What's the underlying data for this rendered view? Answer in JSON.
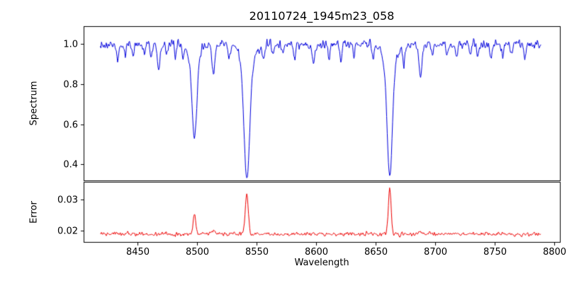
{
  "title": "20110724_1945m23_058",
  "axes": {
    "xlabel": "Wavelength",
    "xlim": [
      8405,
      8805
    ],
    "xticks": [
      {
        "value": 8450,
        "label": "8450"
      },
      {
        "value": 8500,
        "label": "8500"
      },
      {
        "value": 8550,
        "label": "8550"
      },
      {
        "value": 8600,
        "label": "8600"
      },
      {
        "value": 8650,
        "label": "8650"
      },
      {
        "value": 8700,
        "label": "8700"
      },
      {
        "value": 8750,
        "label": "8750"
      },
      {
        "value": 8800,
        "label": "8800"
      }
    ],
    "panels": {
      "top": {
        "ylabel": "Spectrum",
        "ylim": [
          0.32,
          1.09
        ],
        "yticks": [
          {
            "value": 0.4,
            "label": "0.4"
          },
          {
            "value": 0.6,
            "label": "0.6"
          },
          {
            "value": 0.8,
            "label": "0.8"
          },
          {
            "value": 1.0,
            "label": "1.0"
          }
        ]
      },
      "bottom": {
        "ylabel": "Error",
        "ylim": [
          0.0165,
          0.0355
        ],
        "yticks": [
          {
            "value": 0.02,
            "label": "0.02"
          },
          {
            "value": 0.03,
            "label": "0.03"
          }
        ]
      }
    }
  },
  "chart_data": {
    "type": "line",
    "title": "20110724_1945m23_058",
    "xlabel": "Wavelength",
    "x_start": 8419,
    "x_end": 8789,
    "x_step": 0.5,
    "noise_seed": 20110724,
    "series": [
      {
        "name": "spectrum",
        "panel": "top",
        "color": "#0000dd",
        "linewidth": 1,
        "baseline": 1.0,
        "noise_sigma": 0.012,
        "absorption_lines": [
          {
            "center": 8433.5,
            "depth": 0.09,
            "width": 0.9
          },
          {
            "center": 8440.0,
            "depth": 0.05,
            "width": 0.8
          },
          {
            "center": 8446.5,
            "depth": 0.07,
            "width": 0.8
          },
          {
            "center": 8456.0,
            "depth": 0.05,
            "width": 0.8
          },
          {
            "center": 8462.0,
            "depth": 0.06,
            "width": 0.8
          },
          {
            "center": 8468.0,
            "depth": 0.13,
            "width": 1.0
          },
          {
            "center": 8475.0,
            "depth": 0.06,
            "width": 0.8
          },
          {
            "center": 8482.0,
            "depth": 0.05,
            "width": 0.8
          },
          {
            "center": 8488.5,
            "depth": 0.06,
            "width": 0.8
          },
          {
            "center": 8498.0,
            "depth": 0.4,
            "width": 2.0
          },
          {
            "center": 8498.0,
            "depth": 0.07,
            "width": 5.0
          },
          {
            "center": 8514.0,
            "depth": 0.16,
            "width": 1.2
          },
          {
            "center": 8527.0,
            "depth": 0.07,
            "width": 0.9
          },
          {
            "center": 8542.1,
            "depth": 0.58,
            "width": 2.4
          },
          {
            "center": 8542.1,
            "depth": 0.09,
            "width": 6.0
          },
          {
            "center": 8556.0,
            "depth": 0.07,
            "width": 0.9
          },
          {
            "center": 8564.0,
            "depth": 0.05,
            "width": 0.8
          },
          {
            "center": 8572.0,
            "depth": 0.06,
            "width": 0.8
          },
          {
            "center": 8582.0,
            "depth": 0.07,
            "width": 0.9
          },
          {
            "center": 8598.0,
            "depth": 0.1,
            "width": 1.0
          },
          {
            "center": 8611.0,
            "depth": 0.08,
            "width": 0.9
          },
          {
            "center": 8621.0,
            "depth": 0.1,
            "width": 0.9
          },
          {
            "center": 8632.0,
            "depth": 0.06,
            "width": 0.8
          },
          {
            "center": 8648.0,
            "depth": 0.07,
            "width": 0.9
          },
          {
            "center": 8662.1,
            "depth": 0.56,
            "width": 2.2
          },
          {
            "center": 8662.1,
            "depth": 0.09,
            "width": 5.5
          },
          {
            "center": 8674.0,
            "depth": 0.1,
            "width": 0.9
          },
          {
            "center": 8688.0,
            "depth": 0.17,
            "width": 1.3
          },
          {
            "center": 8698.0,
            "depth": 0.05,
            "width": 0.8
          },
          {
            "center": 8710.0,
            "depth": 0.06,
            "width": 0.8
          },
          {
            "center": 8718.0,
            "depth": 0.05,
            "width": 0.8
          },
          {
            "center": 8730.0,
            "depth": 0.05,
            "width": 0.8
          },
          {
            "center": 8736.0,
            "depth": 0.06,
            "width": 0.8
          },
          {
            "center": 8747.0,
            "depth": 0.07,
            "width": 0.9
          },
          {
            "center": 8757.0,
            "depth": 0.06,
            "width": 0.8
          },
          {
            "center": 8764.0,
            "depth": 0.05,
            "width": 0.8
          },
          {
            "center": 8776.0,
            "depth": 0.07,
            "width": 0.9
          }
        ]
      },
      {
        "name": "error",
        "panel": "bottom",
        "color": "#ee0000",
        "linewidth": 1,
        "baseline": 0.019,
        "noise_sigma": 0.00035,
        "emission_peaks": [
          {
            "center": 8498.0,
            "amp": 0.0062,
            "width": 1.1
          },
          {
            "center": 8514.0,
            "amp": 0.0014,
            "width": 1.0
          },
          {
            "center": 8542.1,
            "amp": 0.0125,
            "width": 1.3
          },
          {
            "center": 8662.1,
            "amp": 0.0148,
            "width": 1.1
          },
          {
            "center": 8688.0,
            "amp": 0.001,
            "width": 1.0
          }
        ]
      }
    ]
  }
}
